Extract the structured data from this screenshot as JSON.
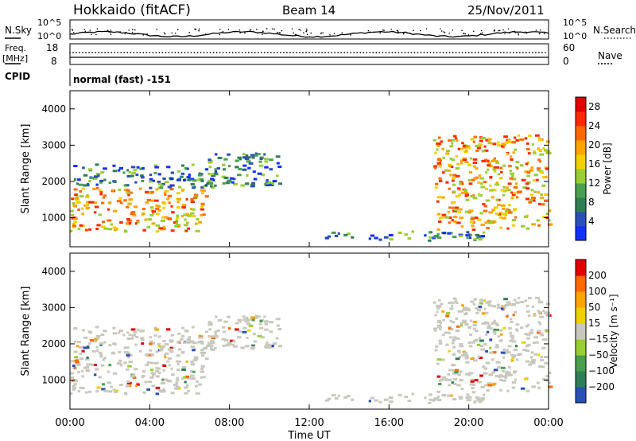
{
  "header": {
    "station": "Hokkaido (fitACF)",
    "beam": "Beam 14",
    "date": "25/Nov/2011"
  },
  "top_panels": {
    "nsky_label": "N.Sky",
    "nsearch_label": "N.Search",
    "noise_ticks": [
      "10^5",
      "10^0"
    ],
    "freq_label_1": "Freq.",
    "freq_label_2": "[MHz]",
    "freq_ticks": [
      "18",
      "8"
    ],
    "nave_label": "Nave",
    "nave_ticks": [
      "60",
      "0"
    ],
    "cpid_label": "CPID",
    "cpid_text": "normal (fast) -151"
  },
  "colors": {
    "power_scale": [
      "#1030ff",
      "#2a50b8",
      "#2e7f56",
      "#4aa050",
      "#9acd32",
      "#f0d000",
      "#ffa500",
      "#ff6a00",
      "#ff2a00",
      "#e00000"
    ],
    "velocity_scale": [
      "#2a50b8",
      "#2e7f56",
      "#4aa050",
      "#9acd32",
      "#c8c8be",
      "#f0d000",
      "#ffa500",
      "#ff6a00",
      "#e00000"
    ],
    "ground_scatter": "#c8c8be"
  },
  "chart_data": [
    {
      "type": "heatmap",
      "name": "power",
      "ylabel": "Slant Range [km]",
      "ylim": [
        200,
        4500
      ],
      "yticks": [
        1000,
        2000,
        3000,
        4000
      ],
      "xlim": [
        0,
        24
      ],
      "colorbar": {
        "label": "Power [dB]",
        "ticks": [
          "4",
          "8",
          "12",
          "16",
          "20",
          "24",
          "28"
        ],
        "range": [
          0,
          30
        ]
      },
      "regions": [
        {
          "t0": 0.0,
          "t1": 6.8,
          "r0": 650,
          "r1": 1850,
          "level": "high"
        },
        {
          "t0": 0.0,
          "t1": 7.5,
          "r0": 1850,
          "r1": 2500,
          "level": "low"
        },
        {
          "t0": 6.8,
          "t1": 10.5,
          "r0": 1900,
          "r1": 2800,
          "level": "low"
        },
        {
          "t0": 18.2,
          "t1": 24.0,
          "r0": 700,
          "r1": 3300,
          "level": "high"
        },
        {
          "t0": 12.5,
          "t1": 21.0,
          "r0": 400,
          "r1": 650,
          "level": "low"
        }
      ]
    },
    {
      "type": "heatmap",
      "name": "velocity",
      "ylabel": "Slant Range [km]",
      "ylim": [
        200,
        4500
      ],
      "yticks": [
        1000,
        2000,
        3000,
        4000
      ],
      "xlim": [
        0,
        24
      ],
      "colorbar": {
        "label": "Velocity [m s⁻¹]",
        "ticks": [
          "200",
          "100",
          "50",
          "15",
          "−15",
          "−50",
          "−100",
          "−200"
        ],
        "range": [
          -250,
          250
        ]
      }
    }
  ],
  "xaxis": {
    "ticks": [
      "00:00",
      "04:00",
      "08:00",
      "12:00",
      "16:00",
      "20:00",
      "00:00"
    ],
    "label": "Time UT"
  }
}
